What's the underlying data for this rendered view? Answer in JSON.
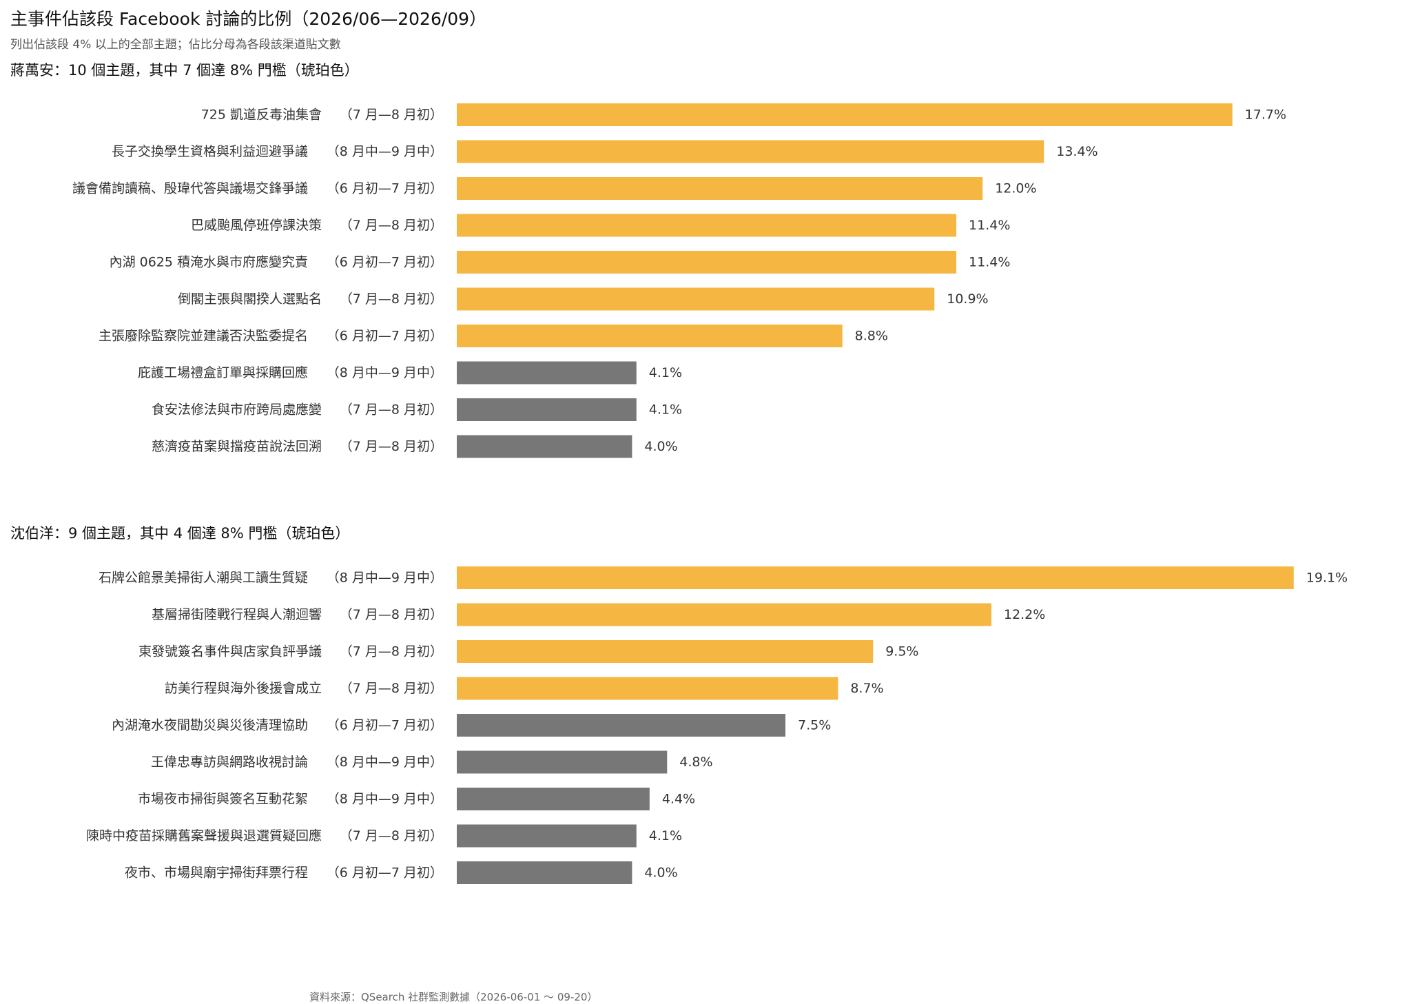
{
  "header": {
    "title": "主事件佔該段 Facebook 討論的比例（2026/06—2026/09）",
    "subtitle": "列出佔該段 4% 以上的全部主題；佔比分母為各段該渠道貼文數"
  },
  "footer": {
    "source": "資料來源：QSearch 社群監測數據（2026-06-01 ～ 09-20）"
  },
  "colors": {
    "above_threshold": "#F5B642",
    "below_threshold": "#777777"
  },
  "chart_data": [
    {
      "type": "bar",
      "orientation": "horizontal",
      "title": "蔣萬安：10 個主題，其中 7 個達 8% 門檻（琥珀色）",
      "threshold": 8,
      "unit": "%",
      "categories": [
        "725 凱道反毒油集會",
        "長子交換學生資格與利益迴避爭議",
        "議會備詢讀稿、殷瑋代答與議場交鋒爭議",
        "巴威颱風停班停課決策",
        "內湖 0625 積淹水與市府應變究責",
        "倒閣主張與閣揆人選點名",
        "主張廢除監察院並建議否決監委提名",
        "庇護工場禮盒訂單與採購回應",
        "食安法修法與市府跨局處應變",
        "慈濟疫苗案與擋疫苗說法回溯"
      ],
      "periods": [
        "（7 月—8 月初）",
        "（8 月中—9 月中）",
        "（6 月初—7 月初）",
        "（7 月—8 月初）",
        "（6 月初—7 月初）",
        "（7 月—8 月初）",
        "（6 月初—7 月初）",
        "（8 月中—9 月中）",
        "（7 月—8 月初）",
        "（7 月—8 月初）"
      ],
      "values": [
        17.7,
        13.4,
        12.0,
        11.4,
        11.4,
        10.9,
        8.8,
        4.1,
        4.1,
        4.0
      ],
      "value_labels": [
        "17.7%",
        "13.4%",
        "12.0%",
        "11.4%",
        "11.4%",
        "10.9%",
        "8.8%",
        "4.1%",
        "4.1%",
        "4.0%"
      ]
    },
    {
      "type": "bar",
      "orientation": "horizontal",
      "title": "沈伯洋：9 個主題，其中 4 個達 8% 門檻（琥珀色）",
      "threshold": 8,
      "unit": "%",
      "categories": [
        "石牌公館景美掃街人潮與工讀生質疑",
        "基層掃街陸戰行程與人潮迴響",
        "東發號簽名事件與店家負評爭議",
        "訪美行程與海外後援會成立",
        "內湖淹水夜間勘災與災後清理協助",
        "王偉忠專訪與網路收視討論",
        "市場夜市掃街與簽名互動花絮",
        "陳時中疫苗採購舊案聲援與退選質疑回應",
        "夜市、市場與廟宇掃街拜票行程"
      ],
      "periods": [
        "（8 月中—9 月中）",
        "（7 月—8 月初）",
        "（7 月—8 月初）",
        "（7 月—8 月初）",
        "（6 月初—7 月初）",
        "（8 月中—9 月中）",
        "（8 月中—9 月中）",
        "（7 月—8 月初）",
        "（6 月初—7 月初）"
      ],
      "values": [
        19.1,
        12.2,
        9.5,
        8.7,
        7.5,
        4.8,
        4.4,
        4.1,
        4.0
      ],
      "value_labels": [
        "19.1%",
        "12.2%",
        "9.5%",
        "8.7%",
        "7.5%",
        "4.8%",
        "4.4%",
        "4.1%",
        "4.0%"
      ]
    }
  ]
}
